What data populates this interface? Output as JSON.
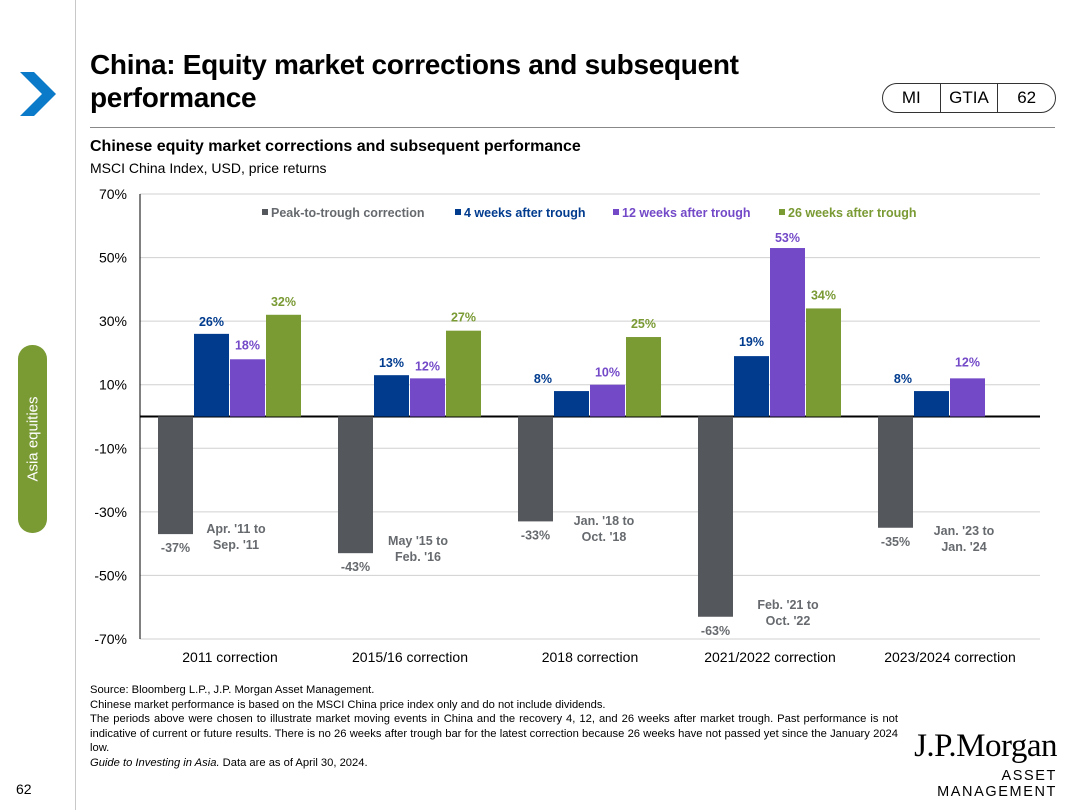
{
  "page": {
    "title": "China: Equity market corrections and subsequent performance",
    "section_tab": "Asia equities",
    "page_number": "62",
    "tags": [
      "MI",
      "GTIA",
      "62"
    ]
  },
  "chart_data": {
    "type": "bar",
    "title": "Chinese equity market corrections and subsequent performance",
    "subtitle": "MSCI China Index, USD, price returns",
    "ylim": [
      -70,
      70
    ],
    "yticks": [
      70,
      50,
      30,
      10,
      -10,
      -30,
      -50,
      -70
    ],
    "ytick_labels": [
      "70%",
      "50%",
      "30%",
      "10%",
      "-10%",
      "-30%",
      "-50%",
      "-70%"
    ],
    "grid": true,
    "legend_position": "top",
    "categories": [
      "2011 correction",
      "2015/16 correction",
      "2018 correction",
      "2021/2022 correction",
      "2023/2024 correction"
    ],
    "series": [
      {
        "name": "Peak-to-trough correction",
        "color": "#54575c",
        "values": [
          -37,
          -43,
          -33,
          -63,
          -35
        ],
        "labels": [
          "-37%",
          "-43%",
          "-33%",
          "-63%",
          "-35%"
        ]
      },
      {
        "name": "4 weeks after trough",
        "color": "#003b8e",
        "values": [
          26,
          13,
          8,
          19,
          8
        ],
        "labels": [
          "26%",
          "13%",
          "8%",
          "19%",
          "8%"
        ]
      },
      {
        "name": "12 weeks after trough",
        "color": "#7349c8",
        "values": [
          18,
          12,
          10,
          53,
          12
        ],
        "labels": [
          "18%",
          "12%",
          "10%",
          "53%",
          "12%"
        ]
      },
      {
        "name": "26 weeks after trough",
        "color": "#7a9a34",
        "values": [
          32,
          27,
          25,
          34,
          null
        ],
        "labels": [
          "32%",
          "27%",
          "25%",
          "34%",
          ""
        ]
      }
    ],
    "period_annotations": [
      [
        "Apr. '11 to",
        "Sep. '11"
      ],
      [
        "May '15 to",
        "Feb. '16"
      ],
      [
        "Jan. '18 to",
        "Oct. '18"
      ],
      [
        "Feb. '21 to",
        "Oct. '22"
      ],
      [
        "Jan. '23 to",
        "Jan. '24"
      ]
    ]
  },
  "footnotes": {
    "source": "Source: Bloomberg L.P., J.P. Morgan Asset Management.",
    "note1": "Chinese market performance is based on the MSCI China price index only and do not include dividends.",
    "note2": "The periods above were chosen to illustrate market moving events in China and the recovery 4, 12, and 26 weeks after market trough. Past performance is not indicative of current or future results. There is no 26 weeks after trough bar for the latest correction because 26 weeks have not passed yet since the January 2024 low.",
    "guide_italic": "Guide to Investing in Asia.",
    "data_as_of": " Data are as of April 30, 2024."
  },
  "brand": {
    "name": "J.P.Morgan",
    "sub": "ASSET MANAGEMENT"
  }
}
